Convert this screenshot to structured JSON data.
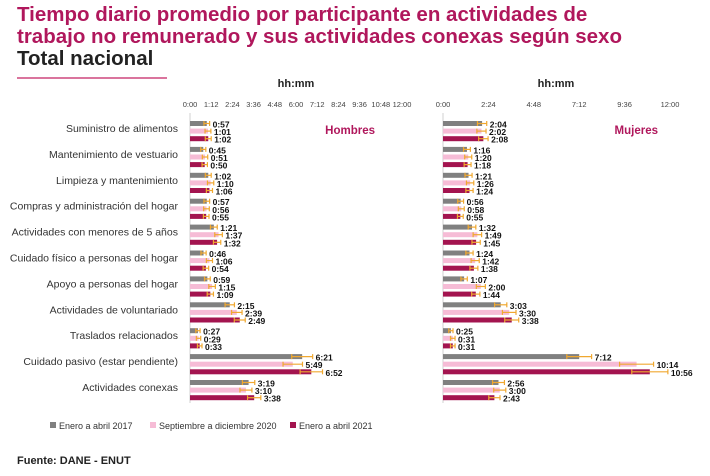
{
  "title": [
    "Tiempo diario promedio por participante en actividades de",
    "trabajo no remunerado y sus actividades conexas según sexo"
  ],
  "subtitle": "Total nacional",
  "source": "Fuente: DANE - ENUT",
  "colors": {
    "title": "#b0175c",
    "series": [
      "#808080",
      "#f6bcd6",
      "#a3144f"
    ],
    "error_bar": "#f0a830"
  },
  "chart_data": [
    {
      "type": "bar",
      "orientation": "horizontal",
      "panel_label": "Hombres",
      "xlabel": "hh:mm",
      "xticks": [
        "0:00",
        "1:12",
        "2:24",
        "3:36",
        "4:48",
        "6:00",
        "7:12",
        "8:24",
        "9:36",
        "10:48",
        "12:00"
      ],
      "xlim": [
        "0:00",
        "12:00"
      ],
      "categories": [
        "Suministro de alimentos",
        "Mantenimiento de vestuario",
        "Limpieza y mantenimiento",
        "Compras y administración del hogar",
        "Actividades con menores de 5 años",
        "Cuidado físico a personas del hogar",
        "Apoyo a personas del hogar",
        "Actividades de voluntariado",
        "Traslados relacionados",
        "Cuidado pasivo (estar pendiente)",
        "Actividades conexas"
      ],
      "series": [
        {
          "name": "Enero a abril 2017",
          "values": [
            "0:57",
            "0:45",
            "1:02",
            "0:57",
            "1:21",
            "0:46",
            "0:59",
            "2:15",
            "0:27",
            "6:21",
            "3:19"
          ]
        },
        {
          "name": "Septiembre a diciembre 2020",
          "values": [
            "1:01",
            "0:51",
            "1:10",
            "0:56",
            "1:37",
            "1:06",
            "1:15",
            "2:39",
            "0:29",
            "5:49",
            "3:10"
          ]
        },
        {
          "name": "Enero a abril 2021",
          "values": [
            "1:02",
            "0:50",
            "1:06",
            "0:55",
            "1:32",
            "0:54",
            "1:09",
            "2:49",
            "0:33",
            "6:52",
            "3:38"
          ]
        }
      ]
    },
    {
      "type": "bar",
      "orientation": "horizontal",
      "panel_label": "Mujeres",
      "xlabel": "hh:mm",
      "xticks": [
        "0:00",
        "2:24",
        "4:48",
        "7:12",
        "9:36",
        "12:00"
      ],
      "xlim": [
        "0:00",
        "12:00"
      ],
      "series": [
        {
          "name": "Enero a abril 2017",
          "values": [
            "2:04",
            "1:16",
            "1:21",
            "0:56",
            "1:32",
            "1:24",
            "1:07",
            "3:03",
            "0:25",
            "7:12",
            "2:56"
          ]
        },
        {
          "name": "Septiembre a diciembre 2020",
          "values": [
            "2:02",
            "1:20",
            "1:26",
            "0:58",
            "1:49",
            "1:42",
            "2:00",
            "3:30",
            "0:31",
            "10:14",
            "3:00"
          ]
        },
        {
          "name": "Enero a abril 2021",
          "values": [
            "2:08",
            "1:18",
            "1:24",
            "0:55",
            "1:45",
            "1:38",
            "1:44",
            "3:38",
            "0:31",
            "10:56",
            "2:43"
          ]
        }
      ]
    }
  ],
  "legend": [
    "Enero a abril 2017",
    "Septiembre a diciembre 2020",
    "Enero a abril 2021"
  ]
}
